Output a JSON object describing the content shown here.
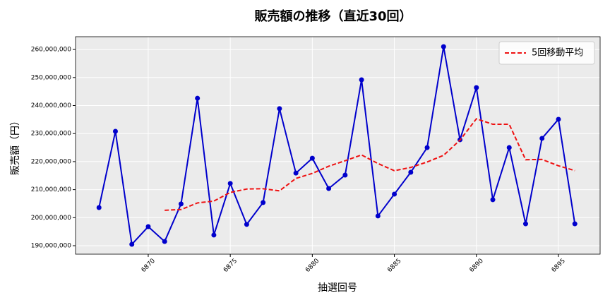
{
  "chart_data": {
    "type": "line",
    "title": "販売額の推移（直近30回）",
    "xlabel": "抽選回号",
    "ylabel": "販売額（円）",
    "x": [
      6867,
      6868,
      6869,
      6870,
      6871,
      6872,
      6873,
      6874,
      6875,
      6876,
      6877,
      6878,
      6879,
      6880,
      6881,
      6882,
      6883,
      6884,
      6885,
      6886,
      6887,
      6888,
      6889,
      6890,
      6891,
      6892,
      6893,
      6894,
      6895,
      6896
    ],
    "series": [
      {
        "name": "販売額",
        "color": "#0000cc",
        "style": "solid",
        "marker": true,
        "values": [
          203600000,
          230800000,
          190500000,
          196800000,
          191500000,
          204900000,
          242600000,
          193800000,
          212200000,
          197600000,
          205400000,
          238900000,
          215900000,
          221200000,
          210400000,
          215200000,
          249200000,
          200600000,
          208400000,
          216200000,
          225000000,
          261000000,
          227800000,
          246400000,
          206400000,
          225000000,
          197800000,
          228300000,
          235100000,
          197800000
        ]
      },
      {
        "name": "5回移動平均",
        "color": "#ee1111",
        "style": "dashed",
        "marker": false,
        "legend": true,
        "values": [
          null,
          null,
          null,
          null,
          202640000,
          202900000,
          205260000,
          205920000,
          209000000,
          210220000,
          210320000,
          209580000,
          214000000,
          215800000,
          218360000,
          220320000,
          222380000,
          219320000,
          216760000,
          217920000,
          219880000,
          222240000,
          227680000,
          235280000,
          233320000,
          233320000,
          220680000,
          220780000,
          218520000,
          216800000
        ]
      }
    ],
    "xlim": [
      6865.57,
      6897.54
    ],
    "ylim": [
      186980000,
      264560000
    ],
    "xticks": [
      6870,
      6875,
      6880,
      6885,
      6890,
      6895
    ],
    "yticks": [
      {
        "value": 190000000,
        "label": "190,000,000"
      },
      {
        "value": 200000000,
        "label": "200,000,000"
      },
      {
        "value": 210000000,
        "label": "210,000,000"
      },
      {
        "value": 220000000,
        "label": "220,000,000"
      },
      {
        "value": 230000000,
        "label": "230,000,000"
      },
      {
        "value": 240000000,
        "label": "240,000,000"
      },
      {
        "value": 250000000,
        "label": "250,000,000"
      },
      {
        "value": 260000000,
        "label": "260,000,000"
      }
    ],
    "grid": true,
    "legend": "upper right"
  }
}
